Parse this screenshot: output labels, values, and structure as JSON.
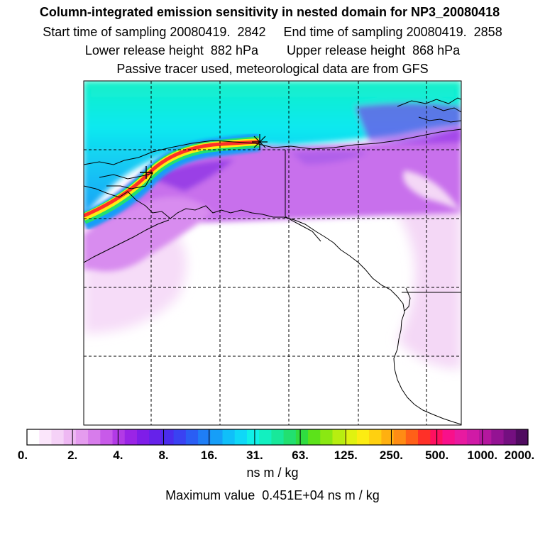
{
  "header": {
    "title": "Column-integrated emission sensitivity in nested domain for NP3_20080418",
    "sampling_line": "Start time of sampling 20080419.  2842     End time of sampling 20080419.  2858",
    "release_line": "Lower release height  882 hPa        Upper release height  868 hPa",
    "tracer_line": "Passive tracer used, meteorological data are from GFS"
  },
  "colorbar": {
    "labels": [
      "0.",
      "2.",
      "4.",
      "8.",
      "16.",
      "31.",
      "63.",
      "125.",
      "250.",
      "500.",
      "1000.",
      "2000."
    ],
    "colors": [
      "#ffffff",
      "#fbe6fb",
      "#f5d2f7",
      "#eeb8f3",
      "#e59cef",
      "#d77ceb",
      "#c85ae9",
      "#b23ae6",
      "#9a24e6",
      "#7f1de8",
      "#6622ea",
      "#4b2cee",
      "#3a42f2",
      "#2a5ef4",
      "#1f7ef6",
      "#169ef8",
      "#10bff9",
      "#0fd8f7",
      "#10f0e8",
      "#12f0c0",
      "#18e89a",
      "#22e070",
      "#30dc40",
      "#5ce21a",
      "#8ae812",
      "#b8ee10",
      "#e0f210",
      "#fcec12",
      "#ffd010",
      "#ffb010",
      "#ff8c14",
      "#ff6018",
      "#ff3028",
      "#ff1060",
      "#f8108a",
      "#e81aa0",
      "#d01aa6",
      "#b4179e",
      "#941393",
      "#740f80",
      "#500b60"
    ],
    "units": "ns m / kg",
    "max_value_text": "Maximum value  0.451E+04 ns m / kg"
  },
  "map": {
    "source_marker": "release-point-star-icon",
    "receptor_marker": "plus-marker-icon"
  }
}
